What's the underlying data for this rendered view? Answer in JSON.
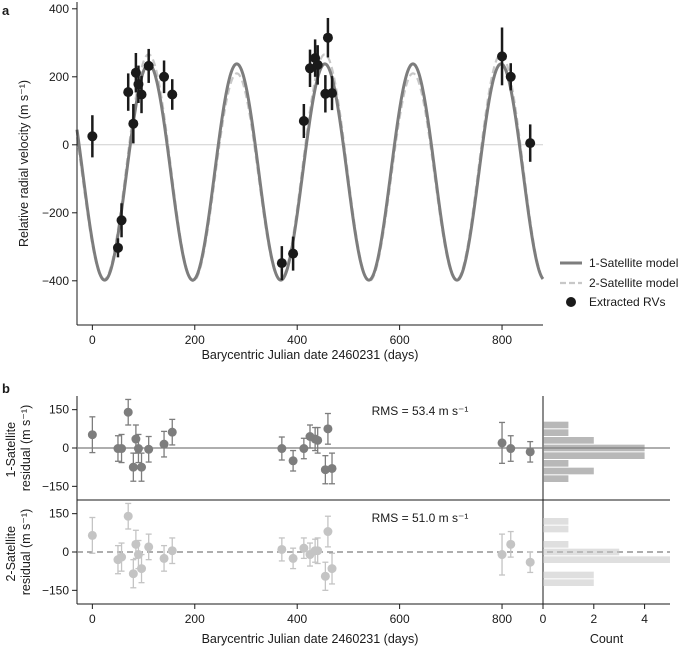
{
  "chart_data": [
    {
      "id": "a",
      "panel_label": "a",
      "type": "line",
      "xlabel": "Barycentric Julian date 2460231 (days)",
      "ylabel": "Relative radial velocity (m s⁻¹)",
      "xlim": [
        -30,
        880
      ],
      "ylim": [
        -530,
        420
      ],
      "xticks": [
        0,
        200,
        400,
        600,
        800
      ],
      "yticks": [
        -400,
        -200,
        0,
        200,
        400
      ],
      "legend_position": "right",
      "zero_line": true,
      "colors": {
        "model1": "#7d7d7d",
        "model2": "#c8c8c8",
        "data": "#1a1a1a",
        "zero": "#cfcfcf"
      },
      "series": [
        {
          "name": "1-Satellite model",
          "kind": "line",
          "style": "solid",
          "model": {
            "amplitude": 318,
            "offset": -80,
            "period": 172,
            "phase_peak": 282
          }
        },
        {
          "name": "2-Satellite model",
          "kind": "line",
          "style": "dashed",
          "model": {
            "amplitude": 318,
            "offset": -80,
            "period": 172,
            "phase_peak": 282,
            "amplitude2": 28,
            "period2": 345,
            "phase_peak2": 795
          }
        },
        {
          "name": "Extracted RVs",
          "kind": "scatter",
          "points": [
            {
              "x": 0,
              "y": 25,
              "err": 62
            },
            {
              "x": 50,
              "y": -303,
              "err": 28
            },
            {
              "x": 57,
              "y": -222,
              "err": 50
            },
            {
              "x": 70,
              "y": 155,
              "err": 55
            },
            {
              "x": 80,
              "y": 62,
              "err": 58
            },
            {
              "x": 85,
              "y": 212,
              "err": 58
            },
            {
              "x": 90,
              "y": 178,
              "err": 55
            },
            {
              "x": 96,
              "y": 148,
              "err": 55
            },
            {
              "x": 110,
              "y": 232,
              "err": 50
            },
            {
              "x": 140,
              "y": 200,
              "err": 48
            },
            {
              "x": 156,
              "y": 148,
              "err": 45
            },
            {
              "x": 370,
              "y": -348,
              "err": 50
            },
            {
              "x": 392,
              "y": -320,
              "err": 50
            },
            {
              "x": 413,
              "y": 70,
              "err": 50
            },
            {
              "x": 425,
              "y": 225,
              "err": 55
            },
            {
              "x": 435,
              "y": 255,
              "err": 55
            },
            {
              "x": 440,
              "y": 235,
              "err": 58
            },
            {
              "x": 455,
              "y": 150,
              "err": 55
            },
            {
              "x": 460,
              "y": 315,
              "err": 58
            },
            {
              "x": 468,
              "y": 152,
              "err": 50
            },
            {
              "x": 800,
              "y": 260,
              "err": 85
            },
            {
              "x": 817,
              "y": 200,
              "err": 40
            },
            {
              "x": 855,
              "y": 5,
              "err": 55
            }
          ]
        }
      ]
    },
    {
      "id": "b1",
      "panel_label": "b",
      "type": "scatter",
      "xlabel": "",
      "ylabel": "1-Satellite residual (m s⁻¹)",
      "ylabel_lines": [
        "1-Satellite",
        "residual (m s⁻¹)"
      ],
      "xlim": [
        -30,
        880
      ],
      "ylim": [
        -180,
        180
      ],
      "yticks": [
        -150,
        0,
        150
      ],
      "rms_text": "RMS = 53.4 m s⁻¹",
      "color": "#7d7d7d",
      "points": [
        {
          "x": 0,
          "y": 52,
          "err": 70
        },
        {
          "x": 50,
          "y": -2,
          "err": 50
        },
        {
          "x": 57,
          "y": -2,
          "err": 55
        },
        {
          "x": 70,
          "y": 140,
          "err": 50
        },
        {
          "x": 80,
          "y": -75,
          "err": 55
        },
        {
          "x": 85,
          "y": 35,
          "err": 55
        },
        {
          "x": 90,
          "y": -2,
          "err": 55
        },
        {
          "x": 96,
          "y": -75,
          "err": 55
        },
        {
          "x": 110,
          "y": -5,
          "err": 50
        },
        {
          "x": 140,
          "y": 15,
          "err": 50
        },
        {
          "x": 156,
          "y": 62,
          "err": 50
        },
        {
          "x": 370,
          "y": -2,
          "err": 45
        },
        {
          "x": 392,
          "y": -50,
          "err": 40
        },
        {
          "x": 413,
          "y": -2,
          "err": 40
        },
        {
          "x": 425,
          "y": 45,
          "err": 45
        },
        {
          "x": 435,
          "y": 35,
          "err": 45
        },
        {
          "x": 440,
          "y": 30,
          "err": 50
        },
        {
          "x": 455,
          "y": -85,
          "err": 55
        },
        {
          "x": 460,
          "y": 75,
          "err": 60
        },
        {
          "x": 468,
          "y": -80,
          "err": 60
        },
        {
          "x": 800,
          "y": 20,
          "err": 80
        },
        {
          "x": 817,
          "y": -2,
          "err": 50
        },
        {
          "x": 855,
          "y": -15,
          "err": 40
        }
      ],
      "histogram": {
        "bin_centers": [
          -120,
          -90,
          -60,
          -30,
          0,
          30,
          60,
          90,
          120
        ],
        "counts": [
          1,
          2,
          1,
          4,
          4,
          2,
          1,
          1,
          0
        ]
      }
    },
    {
      "id": "b2",
      "panel_label": "",
      "type": "scatter",
      "xlabel": "Barycentric Julian date 2460231 (days)",
      "ylabel": "2-Satellite residual (m s⁻¹)",
      "ylabel_lines": [
        "2-Satellite",
        "residual (m s⁻¹)"
      ],
      "xlim": [
        -30,
        880
      ],
      "ylim": [
        -180,
        180
      ],
      "xticks": [
        0,
        200,
        400,
        600,
        800
      ],
      "yticks": [
        -150,
        0,
        150
      ],
      "rms_text": "RMS = 51.0 m s⁻¹",
      "color": "#c4c4c4",
      "points": [
        {
          "x": 0,
          "y": 65,
          "err": 70
        },
        {
          "x": 50,
          "y": -30,
          "err": 55
        },
        {
          "x": 57,
          "y": -20,
          "err": 55
        },
        {
          "x": 70,
          "y": 140,
          "err": 50
        },
        {
          "x": 80,
          "y": -85,
          "err": 55
        },
        {
          "x": 85,
          "y": 30,
          "err": 55
        },
        {
          "x": 90,
          "y": -10,
          "err": 55
        },
        {
          "x": 96,
          "y": -65,
          "err": 55
        },
        {
          "x": 110,
          "y": 20,
          "err": 50
        },
        {
          "x": 140,
          "y": -25,
          "err": 50
        },
        {
          "x": 156,
          "y": 5,
          "err": 50
        },
        {
          "x": 370,
          "y": 10,
          "err": 45
        },
        {
          "x": 392,
          "y": -25,
          "err": 40
        },
        {
          "x": 413,
          "y": 15,
          "err": 40
        },
        {
          "x": 425,
          "y": -10,
          "err": 45
        },
        {
          "x": 435,
          "y": 5,
          "err": 45
        },
        {
          "x": 440,
          "y": 5,
          "err": 50
        },
        {
          "x": 455,
          "y": -95,
          "err": 55
        },
        {
          "x": 460,
          "y": 80,
          "err": 60
        },
        {
          "x": 468,
          "y": -65,
          "err": 60
        },
        {
          "x": 800,
          "y": -10,
          "err": 80
        },
        {
          "x": 817,
          "y": 30,
          "err": 50
        },
        {
          "x": 855,
          "y": -40,
          "err": 40
        }
      ],
      "histogram": {
        "bin_centers": [
          -120,
          -90,
          -60,
          -30,
          0,
          30,
          60,
          90,
          120
        ],
        "counts": [
          2,
          2,
          0,
          5,
          3,
          1,
          0,
          1,
          1
        ]
      }
    }
  ],
  "histogram_axis": {
    "xlabel": "Count",
    "xlim": [
      0,
      5
    ],
    "xticks": [
      0,
      2,
      4
    ]
  }
}
